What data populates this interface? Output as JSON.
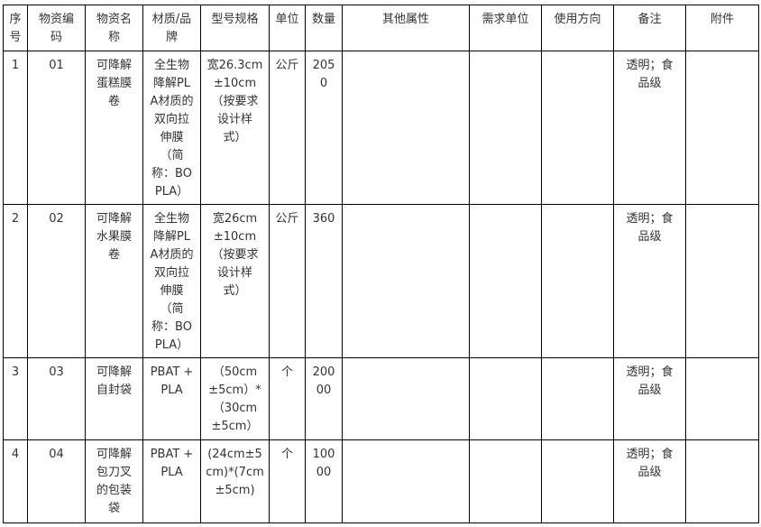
{
  "headers": [
    "序\n号",
    "物资编\n码",
    "物资名\n称",
    "材质/品\n牌",
    "型号规格",
    "单位",
    "数量",
    "其他属性",
    "需求单位",
    "使用方向",
    "备注",
    "附件"
  ],
  "rows": [
    [
      "1",
      "01",
      "可降解\n蛋糕膜\n卷",
      "全生物\n降解PL\nA材质的\n双向拉\n伸膜\n（简\n称：BO\nPLA）",
      "宽26.3cm\n±10cm\n（按要求\n设计样\n式）",
      "公斤",
      "205\n0",
      "",
      "",
      "",
      "透明；食\n品级",
      ""
    ],
    [
      "2",
      "02",
      "可降解\n水果膜\n卷",
      "全生物\n降解PL\nA材质的\n双向拉\n伸膜\n（简\n称：BO\nPLA）",
      "宽26cm\n±10cm\n（按要求\n设计样\n式）",
      "公斤",
      "360",
      "",
      "",
      "",
      "透明；食\n品级",
      ""
    ],
    [
      "3",
      "03",
      "可降解\n自封袋",
      "PBAT +\nPLA",
      "（50cm\n±5cm）*\n（30cm\n±5cm）",
      "个",
      "200\n00",
      "",
      "",
      "",
      "透明；食\n品级",
      ""
    ],
    [
      "4",
      "04",
      "可降解\n包刀叉\n的包装\n袋",
      "PBAT +\nPLA",
      "(24cm±5\ncm)*(7cm\n±5cm)",
      "个",
      "100\n00",
      "",
      "",
      "",
      "透明；食\n品级",
      ""
    ]
  ]
}
